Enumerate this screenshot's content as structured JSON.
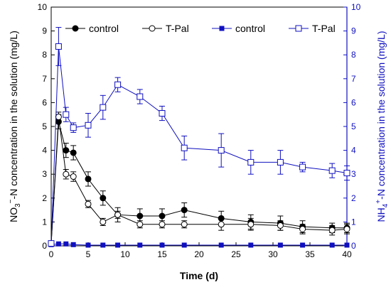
{
  "chart_data": {
    "type": "line",
    "xlabel": "Time (d)",
    "ylabel_left_parts": {
      "pre": "NO",
      "sub": "3",
      "sup": "−",
      "post": "-N concentration in the solution (mg/L)"
    },
    "ylabel_right_parts": {
      "pre": "NH",
      "sub": "4",
      "sup": "+",
      "post": "-N concentration in the solution (mg/L)"
    },
    "xlim": [
      0,
      40
    ],
    "ylim_left": [
      0,
      10
    ],
    "ylim_right": [
      0,
      10
    ],
    "x_ticks": [
      0,
      5,
      10,
      15,
      20,
      25,
      30,
      35,
      40
    ],
    "y_ticks": [
      0,
      1,
      2,
      3,
      4,
      5,
      6,
      7,
      8,
      9,
      10
    ],
    "left_axis_color": "#000000",
    "right_axis_color": "#1010c0",
    "legend_position": "top-left",
    "series": [
      {
        "name": "control",
        "axis": "left",
        "color": "#000000",
        "marker": "filled-circle",
        "x": [
          0,
          1,
          2,
          3,
          5,
          7,
          9,
          12,
          15,
          18,
          23,
          27,
          31,
          34,
          38,
          40
        ],
        "y": [
          0.1,
          5.2,
          4.0,
          3.9,
          2.8,
          2.0,
          1.3,
          1.25,
          1.25,
          1.5,
          1.15,
          1.0,
          0.95,
          0.8,
          0.75,
          0.75
        ],
        "err": [
          0.05,
          0.3,
          0.3,
          0.3,
          0.3,
          0.3,
          0.3,
          0.3,
          0.3,
          0.3,
          0.3,
          0.3,
          0.3,
          0.25,
          0.2,
          0.2
        ]
      },
      {
        "name": "T-Pal",
        "axis": "left",
        "color": "#000000",
        "marker": "open-circle",
        "x": [
          0,
          1,
          2,
          3,
          5,
          7,
          9,
          12,
          15,
          18,
          23,
          27,
          31,
          34,
          38,
          40
        ],
        "y": [
          0.1,
          5.4,
          3.0,
          2.9,
          1.75,
          1.0,
          1.3,
          0.9,
          0.9,
          0.9,
          0.9,
          0.9,
          0.85,
          0.7,
          0.65,
          0.7
        ],
        "err": [
          0.05,
          0.2,
          0.2,
          0.2,
          0.15,
          0.15,
          0.15,
          0.15,
          0.15,
          0.15,
          0.25,
          0.25,
          0.2,
          0.2,
          0.2,
          0.2
        ]
      },
      {
        "name": "control",
        "axis": "right",
        "color": "#1010c0",
        "marker": "filled-square",
        "x": [
          0,
          1,
          2,
          3,
          5,
          7,
          9,
          12,
          15,
          18,
          23,
          27,
          31,
          34,
          38,
          40
        ],
        "y": [
          0.05,
          0.08,
          0.08,
          0.05,
          0.03,
          0.03,
          0.03,
          0.03,
          0.03,
          0.03,
          0.03,
          0.03,
          0.03,
          0.03,
          0.03,
          0.03
        ],
        "err": [
          0,
          0,
          0,
          0,
          0,
          0,
          0,
          0,
          0,
          0,
          0,
          0,
          0,
          0,
          0,
          0
        ]
      },
      {
        "name": "T-Pal",
        "axis": "right",
        "color": "#1010c0",
        "marker": "open-square",
        "x": [
          0,
          1,
          2,
          3,
          5,
          7,
          9,
          12,
          15,
          18,
          23,
          27,
          31,
          34,
          38,
          40
        ],
        "y": [
          0.1,
          8.35,
          5.5,
          4.95,
          5.05,
          5.8,
          6.75,
          6.25,
          5.55,
          4.1,
          4.0,
          3.5,
          3.5,
          3.3,
          3.15,
          3.05
        ],
        "err": [
          0.05,
          0.8,
          0.3,
          0.2,
          0.5,
          0.5,
          0.3,
          0.3,
          0.3,
          0.5,
          0.7,
          0.5,
          0.5,
          0.2,
          0.3,
          0.3
        ]
      }
    ]
  }
}
